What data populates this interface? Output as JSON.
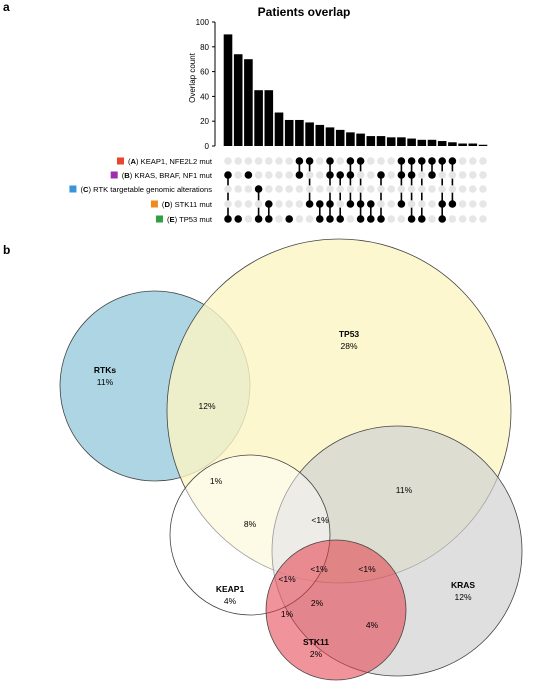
{
  "panel_a_label": "a",
  "panel_b_label": "b",
  "chart_data": [
    {
      "type": "bar",
      "subtype": "upset",
      "title": "Patients overlap",
      "ylabel": "Overlap count",
      "ylim": [
        0,
        100
      ],
      "yticks": [
        "0",
        "20",
        "40",
        "60",
        "80",
        "100"
      ],
      "values": [
        90,
        74,
        70,
        45,
        45,
        27,
        21,
        21,
        19,
        17,
        15,
        13,
        11,
        10,
        8,
        8,
        7,
        7,
        6,
        5,
        5,
        4,
        3,
        2,
        2,
        1
      ],
      "sets": [
        {
          "letter": "A",
          "rest": " KEAP1, NFE2L2 mut",
          "color": "#e8452c"
        },
        {
          "letter": "B",
          "rest": " KRAS, BRAF, NF1 mut",
          "color": "#9b2fae"
        },
        {
          "letter": "C",
          "rest": " RTK targetable genomic alterations",
          "color": "#3b94d9"
        },
        {
          "letter": "D",
          "rest": " STK11 mut",
          "color": "#f08a1c"
        },
        {
          "letter": "E",
          "rest": " TP53 mut",
          "color": "#2ea043"
        }
      ],
      "matrix": [
        [
          0,
          0,
          0,
          0,
          0,
          0,
          0,
          1,
          1,
          0,
          1,
          0,
          1,
          1,
          0,
          0,
          0,
          1,
          1,
          1,
          1,
          1,
          1,
          0,
          0,
          0
        ],
        [
          1,
          0,
          1,
          0,
          0,
          0,
          0,
          1,
          0,
          0,
          1,
          1,
          1,
          0,
          0,
          1,
          0,
          1,
          1,
          0,
          1,
          0,
          0,
          0,
          0,
          0
        ],
        [
          0,
          0,
          0,
          1,
          0,
          0,
          0,
          0,
          0,
          0,
          0,
          0,
          0,
          0,
          0,
          0,
          0,
          0,
          0,
          0,
          0,
          0,
          0,
          0,
          0,
          0
        ],
        [
          0,
          0,
          0,
          0,
          1,
          0,
          0,
          0,
          1,
          1,
          1,
          0,
          1,
          1,
          1,
          0,
          0,
          1,
          0,
          0,
          0,
          1,
          1,
          0,
          0,
          0
        ],
        [
          1,
          1,
          0,
          1,
          1,
          0,
          1,
          0,
          0,
          1,
          1,
          1,
          0,
          1,
          1,
          1,
          0,
          0,
          1,
          1,
          0,
          1,
          0,
          0,
          0,
          0
        ]
      ]
    },
    {
      "type": "venn",
      "sets": [
        {
          "name": "TP53",
          "value": "28%",
          "color": "#fbf5c3"
        },
        {
          "name": "RTKs",
          "value": "11%",
          "color": "#aed5e3"
        },
        {
          "name": "KRAS",
          "value": "12%",
          "color": "#d6d6d6"
        },
        {
          "name": "KEAP1",
          "value": "4%",
          "color": "#ffffff"
        },
        {
          "name": "STK11",
          "value": "2%",
          "color": "#e8606a"
        }
      ],
      "intersections": [
        "12%",
        "11%",
        "1%",
        "8%",
        "<1%",
        "<1%",
        "<1%",
        "<1%",
        "1%",
        "2%",
        "4%"
      ]
    }
  ]
}
